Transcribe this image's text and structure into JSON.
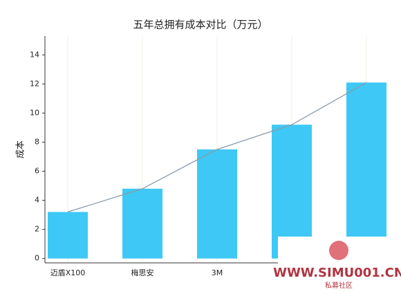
{
  "chart_data": {
    "type": "bar",
    "title": "五年总拥有成本对比（万元）",
    "y_label": "成本",
    "categories": [
      "迈盾X100",
      "梅思安",
      "3M",
      null,
      null
    ],
    "values": [
      3.2,
      4.8,
      7.5,
      9.2,
      12.1
    ],
    "color": "#3ec8f5",
    "line_color": "#8a9aa8",
    "ylim": [
      -0.3,
      15.3
    ],
    "yticks": [
      0,
      2,
      4,
      6,
      8,
      10,
      12,
      14
    ],
    "grid": true,
    "watermark": {
      "text": "WWW.SIMU001.CN",
      "subtext": "私募社区"
    }
  }
}
